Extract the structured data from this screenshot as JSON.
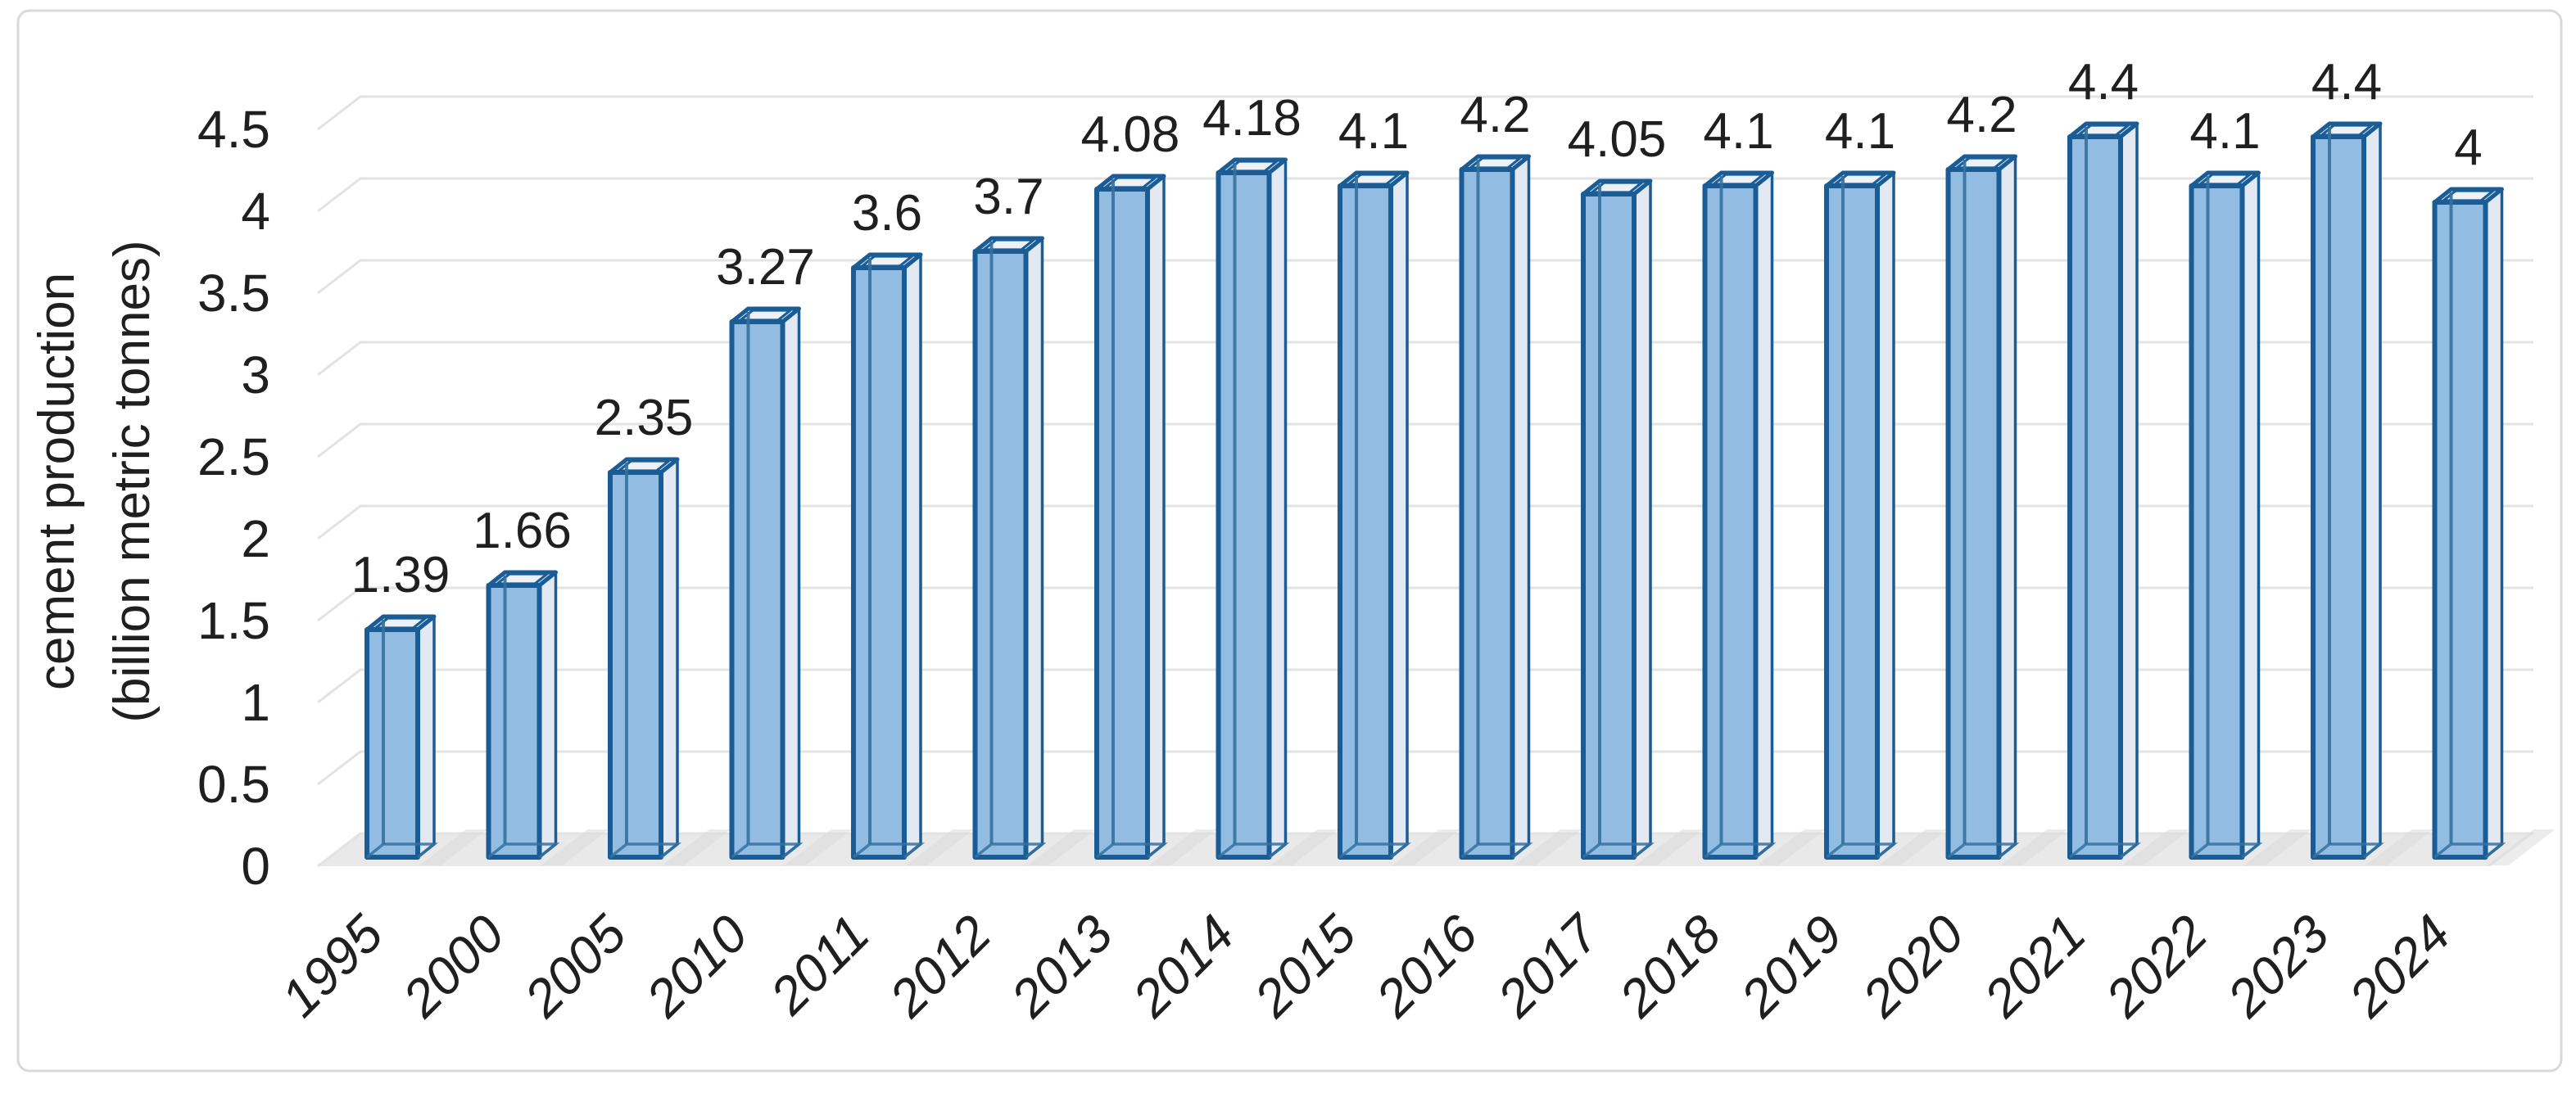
{
  "window": {
    "background": "#FFFFFF",
    "border_color": "#D9D9D9"
  },
  "chart_data": {
    "type": "bar",
    "subtype": "3d-column",
    "title": "",
    "xlabel": "",
    "ylabel": "cement production (billion metric tonnes)",
    "ylabel_lines": [
      "cement production",
      "(billion metric tonnes)"
    ],
    "categories": [
      "1995",
      "2000",
      "2005",
      "2010",
      "2011",
      "2012",
      "2013",
      "2014",
      "2015",
      "2016",
      "2017",
      "2018",
      "2019",
      "2020",
      "2021",
      "2022",
      "2023",
      "2024"
    ],
    "values": [
      1.39,
      1.66,
      2.35,
      3.27,
      3.6,
      3.7,
      4.08,
      4.18,
      4.1,
      4.2,
      4.05,
      4.1,
      4.1,
      4.2,
      4.4,
      4.1,
      4.4,
      4
    ],
    "value_labels": [
      "1.39",
      "1.66",
      "2.35",
      "3.27",
      "3.6",
      "3.7",
      "4.08",
      "4.18",
      "4.1",
      "4.2",
      "4.05",
      "4.1",
      "4.1",
      "4.2",
      "4.4",
      "4.1",
      "4.4",
      "4"
    ],
    "ylim": [
      0,
      4.5
    ],
    "y_tick_step": 0.5,
    "y_tick_labels": [
      "0",
      "0.5",
      "1",
      "1.5",
      "2",
      "2.5",
      "3",
      "3.5",
      "4",
      "4.5"
    ],
    "grid": true,
    "legend": false,
    "colors": {
      "background": "#FFFFFF",
      "border": "#D9D9D9",
      "gridline": "#E3E3E3",
      "floor": "#E9E9E9",
      "shadow": "#D9D9D9",
      "bar_front": "#92BCE2",
      "bar_side": "#E2E9F3",
      "bar_top": "#CFDFEF",
      "bar_top_inner": "#EDF2F9",
      "bar_edge": "#1A5C96",
      "bar_edge_inner": "#35719F",
      "text": "#1F1F1F"
    }
  }
}
